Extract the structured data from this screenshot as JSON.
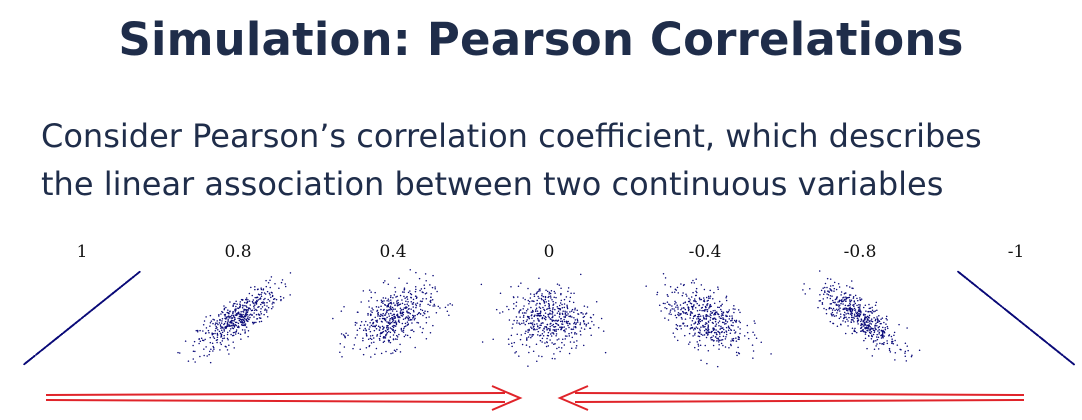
{
  "slide": {
    "title": "Simulation: Pearson Correlations",
    "subtitle_line1": "Consider Pearson’s correlation coefficient, which describes",
    "subtitle_line2": "the linear association between two continuous variables"
  },
  "panels": [
    {
      "label": "1",
      "r": 1
    },
    {
      "label": "0.8",
      "r": 0.8
    },
    {
      "label": "0.4",
      "r": 0.4
    },
    {
      "label": "0",
      "r": 0
    },
    {
      "label": "-0.4",
      "r": -0.4
    },
    {
      "label": "-0.8",
      "r": -0.8
    },
    {
      "label": "-1",
      "r": -1
    }
  ],
  "colors": {
    "title": "#1f2d4a",
    "points": "#0a0a78",
    "arrows": "#e0242a"
  }
}
